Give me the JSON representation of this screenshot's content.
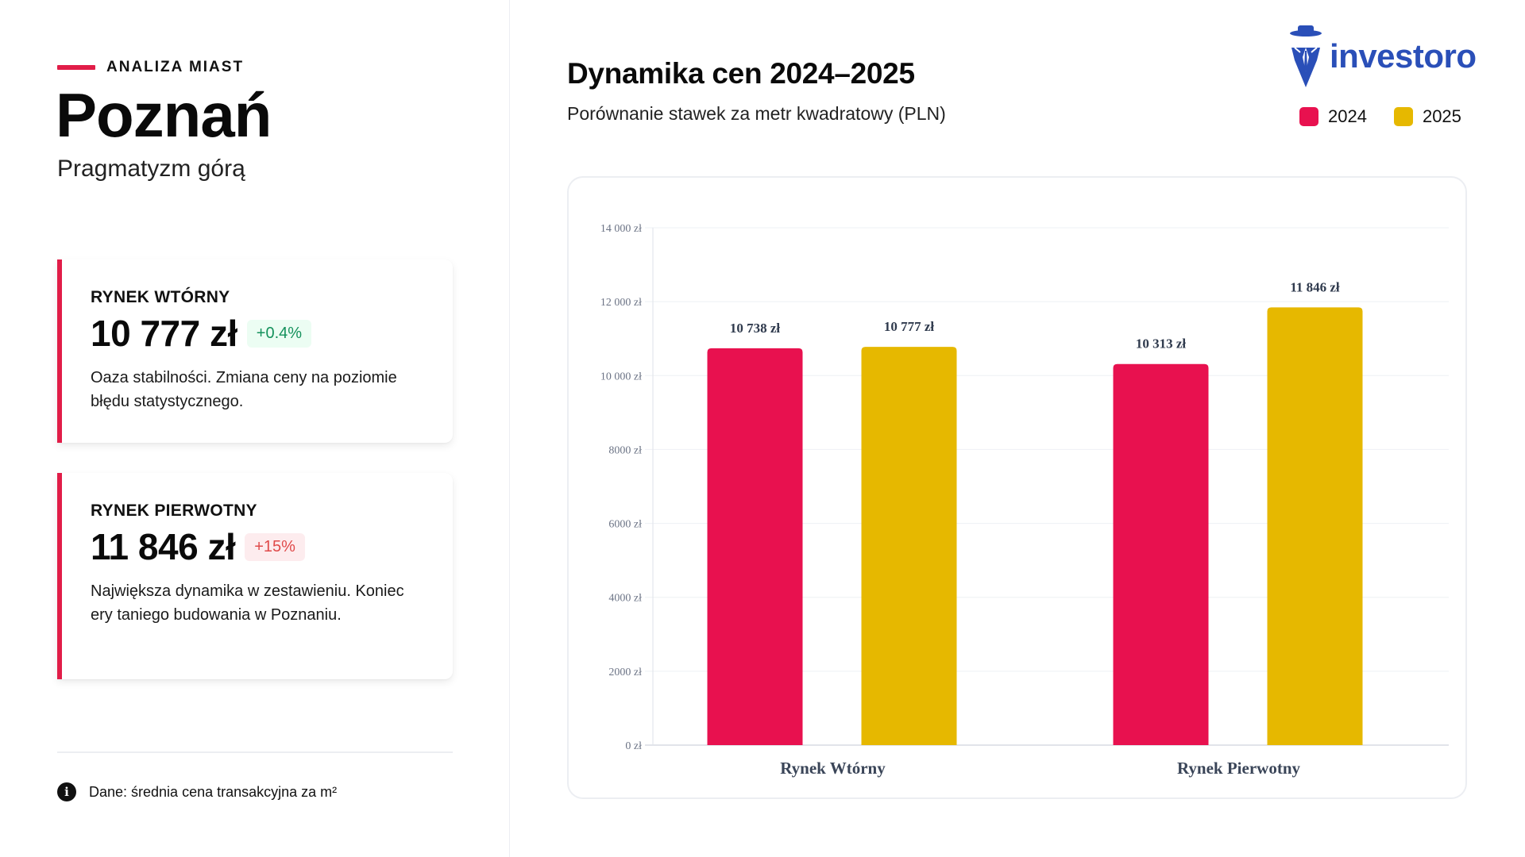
{
  "left": {
    "eyebrow": "ANALIZA MIAST",
    "title": "Poznań",
    "subtitle": "Pragmatyzm górą",
    "cards": [
      {
        "label": "RYNEK WTÓRNY",
        "value": "10 777 zł",
        "change": "+0.4%",
        "change_tone": "positive-stable",
        "description": "Oaza stabilności. Zmiana ceny na poziomie błędu statystycznego."
      },
      {
        "label": "RYNEK PIERWOTNY",
        "value": "11 846 zł",
        "change": "+15%",
        "change_tone": "strong-increase",
        "description": "Największa dynamika w zestawieniu. Koniec ery taniego budowania w Poznaniu."
      }
    ],
    "footnote": "Dane: średnia cena transakcyjna za m²",
    "footnote_icon": "info-icon"
  },
  "header": {
    "title": "Dynamika cen 2024–2025",
    "subtitle": "Porównanie stawek za metr kwadratowy (PLN)"
  },
  "brand": {
    "name": "investoro",
    "icon": "detective-hat-suit-logo",
    "color": "#2a4fb8"
  },
  "legend": [
    {
      "label": "2024",
      "color": "#e8114f"
    },
    {
      "label": "2025",
      "color": "#e6b800"
    }
  ],
  "chart_data": {
    "type": "bar",
    "title": "Dynamika cen 2024–2025",
    "subtitle": "Porównanie stawek za metr kwadratowy (PLN)",
    "categories": [
      "Rynek Wtórny",
      "Rynek Pierwotny"
    ],
    "series": [
      {
        "name": "2024",
        "color": "#e8114f",
        "values": [
          10738,
          10313
        ],
        "labels": [
          "10 738 zł",
          "10 313 zł"
        ]
      },
      {
        "name": "2025",
        "color": "#e6b800",
        "values": [
          10777,
          11846
        ],
        "labels": [
          "10 777 zł",
          "11 846 zł"
        ]
      }
    ],
    "xlabel": "",
    "ylabel": "",
    "ylim": [
      0,
      14000
    ],
    "yticks": [
      0,
      2000,
      4000,
      6000,
      8000,
      10000,
      12000,
      14000
    ],
    "ytick_labels": [
      "0 zł",
      "2000 zł",
      "4000 zł",
      "6000 zł",
      "8000 zł",
      "10 000 zł",
      "12 000 zł",
      "14 000 zł"
    ],
    "grid": true,
    "legend_position": "top-right"
  }
}
